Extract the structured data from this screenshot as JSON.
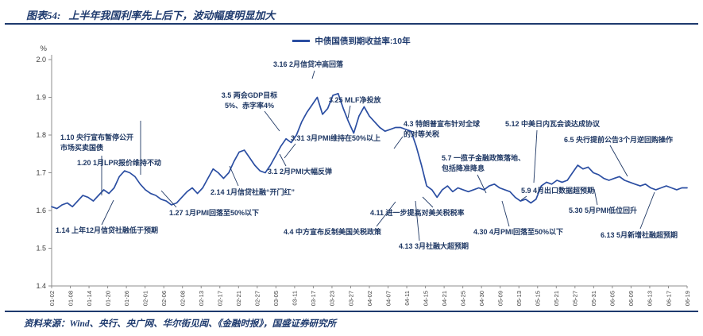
{
  "header": {
    "title_prefix": "图表54:",
    "title": "上半年我国利率先上后下，波动幅度明显加大"
  },
  "legend": {
    "label": "中债国债到期收益率:10年"
  },
  "chart_data": {
    "type": "line",
    "title": "上半年我国利率先上后下，波动幅度明显加大",
    "y_unit": "%",
    "ylim": [
      1.4,
      2.0
    ],
    "y_ticks": [
      "2.0",
      "1.9",
      "1.8",
      "1.7",
      "1.6",
      "1.5",
      "1.4"
    ],
    "grid": false,
    "legend_position": "top-center",
    "line_color": "#2b4ea2",
    "x_labels": [
      "01-02",
      "01-08",
      "01-14",
      "01-20",
      "01-26",
      "02-01",
      "02-06",
      "02-08",
      "02-13",
      "02-17",
      "02-21",
      "02-27",
      "03-05",
      "03-11",
      "03-17",
      "03-23",
      "03-27",
      "04-02",
      "04-07",
      "04-11",
      "04-15",
      "04-21",
      "04-25",
      "04-30",
      "05-09",
      "05-13",
      "05-15",
      "05-21",
      "05-27",
      "05-31",
      "06-05",
      "06-09",
      "06-13",
      "06-17",
      "06-19"
    ],
    "series": [
      {
        "name": "中债国债到期收益率:10年",
        "values": [
          1.61,
          1.605,
          1.615,
          1.62,
          1.61,
          1.625,
          1.64,
          1.635,
          1.625,
          1.64,
          1.655,
          1.645,
          1.66,
          1.69,
          1.705,
          1.7,
          1.69,
          1.67,
          1.655,
          1.645,
          1.64,
          1.63,
          1.625,
          1.615,
          1.62,
          1.635,
          1.65,
          1.66,
          1.645,
          1.66,
          1.685,
          1.71,
          1.7,
          1.685,
          1.7,
          1.73,
          1.755,
          1.76,
          1.74,
          1.72,
          1.705,
          1.7,
          1.72,
          1.745,
          1.77,
          1.79,
          1.78,
          1.8,
          1.835,
          1.86,
          1.88,
          1.9,
          1.855,
          1.87,
          1.905,
          1.91,
          1.87,
          1.835,
          1.805,
          1.85,
          1.875,
          1.85,
          1.835,
          1.82,
          1.81,
          1.815,
          1.82,
          1.82,
          1.815,
          1.81,
          1.77,
          1.72,
          1.665,
          1.655,
          1.635,
          1.655,
          1.665,
          1.65,
          1.66,
          1.655,
          1.65,
          1.655,
          1.66,
          1.655,
          1.665,
          1.67,
          1.66,
          1.655,
          1.65,
          1.635,
          1.625,
          1.63,
          1.62,
          1.63,
          1.665,
          1.675,
          1.67,
          1.68,
          1.675,
          1.68,
          1.7,
          1.72,
          1.71,
          1.715,
          1.7,
          1.695,
          1.685,
          1.68,
          1.685,
          1.69,
          1.68,
          1.675,
          1.67,
          1.665,
          1.67,
          1.66,
          1.655,
          1.66,
          1.665,
          1.66,
          1.655,
          1.66,
          1.66
        ]
      }
    ]
  },
  "annotations": [
    {
      "text": "1.10 央行宣布暂停公开\n市场买卖国债"
    },
    {
      "text": "1.20 1月LPR报价维持不动"
    },
    {
      "text": "1.14 上年12月信贷社融低于预期"
    },
    {
      "text": "1.27 1月PMI回落至50%以下"
    },
    {
      "text": "2.14 1月信贷社融“开门红”"
    },
    {
      "text": "3.1 2月PMI大幅反弹"
    },
    {
      "text": "3.5 两会GDP目标\n5%、赤字率4%"
    },
    {
      "text": "3.16 2月信贷冲高回落"
    },
    {
      "text": "3.31 3月PMI维持在50%以上"
    },
    {
      "text": "3.25 MLF净投放"
    },
    {
      "text": "4.3 特朗普宣布针对全球\n的对等关税"
    },
    {
      "text": "5.7 一揽子金融政策落地、\n包括降准降息"
    },
    {
      "text": "4.11 进一步提高对美关税税率"
    },
    {
      "text": "4.4 中方宣布反制美国关税政策"
    },
    {
      "text": "4.13 3月社融大超预期"
    },
    {
      "text": "4.30 4月PMI回落至50%以下"
    },
    {
      "text": "5.9 4月出口数据超预期"
    },
    {
      "text": "5.12 中美日内瓦会谈达成协议"
    },
    {
      "text": "6.5 央行提前公告3个月逆回购操作"
    },
    {
      "text": "5.30 5月PMI低位回升"
    },
    {
      "text": "6.13 5月新增社融超预期"
    }
  ],
  "footer": {
    "source": "资料来源：Wind、央行、央广网、华尔街见闻、《金融时报》，国盛证券研究所"
  }
}
